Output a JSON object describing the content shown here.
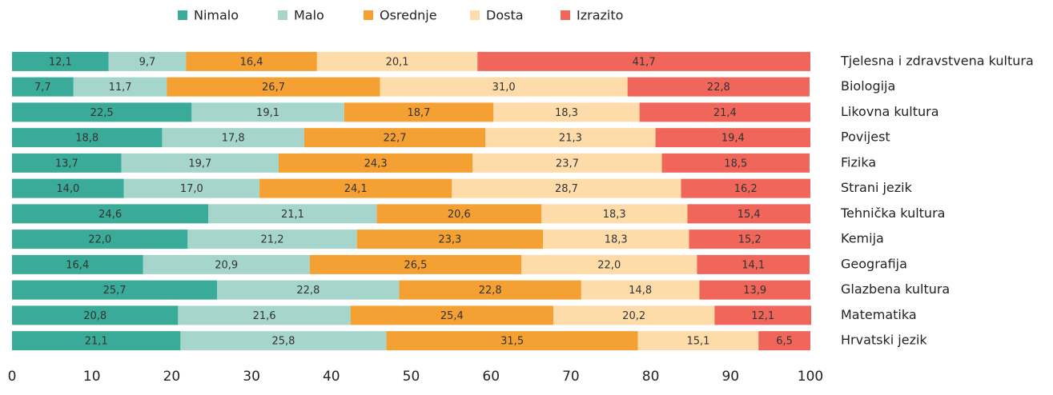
{
  "chart_data": {
    "type": "stacked_barh",
    "categories": [
      "Tjelesna i zdravstvena kultura",
      "Biologija",
      "Likovna kultura",
      "Povijest",
      "Fizika",
      "Strani jezik",
      "Tehnička kultura",
      "Kemija",
      "Geografija",
      "Glazbena kultura",
      "Matematika",
      "Hrvatski jezik"
    ],
    "series": [
      {
        "name": "Nimalo",
        "color": "#3aab98",
        "values": [
          12.1,
          7.7,
          22.5,
          18.8,
          13.7,
          14.0,
          24.6,
          22.0,
          16.4,
          25.7,
          20.8,
          21.1
        ],
        "value_labels": [
          "12,1",
          "7,7",
          "22,5",
          "18,8",
          "13,7",
          "14,0",
          "24,6",
          "22,0",
          "16,4",
          "25,7",
          "20,8",
          "21,1"
        ]
      },
      {
        "name": "Malo",
        "color": "#a6d5cb",
        "values": [
          9.7,
          11.7,
          19.1,
          17.8,
          19.7,
          17.0,
          21.1,
          21.2,
          20.9,
          22.8,
          21.6,
          25.8
        ],
        "value_labels": [
          "9,7",
          "11,7",
          "19,1",
          "17,8",
          "19,7",
          "17,0",
          "21,1",
          "21,2",
          "20,9",
          "22,8",
          "21,6",
          "25,8"
        ]
      },
      {
        "name": "Osrednje",
        "color": "#f5a033",
        "values": [
          16.4,
          26.7,
          18.7,
          22.7,
          24.3,
          24.1,
          20.6,
          23.3,
          26.5,
          22.8,
          25.4,
          31.5
        ],
        "value_labels": [
          "16,4",
          "26,7",
          "18,7",
          "22,7",
          "24,3",
          "24,1",
          "20,6",
          "23,3",
          "26,5",
          "22,8",
          "25,4",
          "31,5"
        ]
      },
      {
        "name": "Dosta",
        "color": "#fddcaa",
        "values": [
          20.1,
          31.0,
          18.3,
          21.3,
          23.7,
          28.7,
          18.3,
          18.3,
          22.0,
          14.8,
          20.2,
          15.1
        ],
        "value_labels": [
          "20,1",
          "31,0",
          "18,3",
          "21,3",
          "23,7",
          "28,7",
          "18,3",
          "18,3",
          "22,0",
          "14,8",
          "20,2",
          "15,1"
        ]
      },
      {
        "name": "Izrazito",
        "color": "#f0665a",
        "values": [
          41.7,
          22.8,
          21.4,
          19.4,
          18.5,
          16.2,
          15.4,
          15.2,
          14.1,
          13.9,
          12.1,
          6.5
        ],
        "value_labels": [
          "41,7",
          "22,8",
          "21,4",
          "19,4",
          "18,5",
          "16,2",
          "15,4",
          "15,2",
          "14,1",
          "13,9",
          "12,1",
          "6,5"
        ]
      }
    ],
    "xlim": [
      0,
      100
    ],
    "xticks": [
      0,
      10,
      20,
      30,
      40,
      50,
      60,
      70,
      80,
      90,
      100
    ],
    "legend": "top"
  }
}
